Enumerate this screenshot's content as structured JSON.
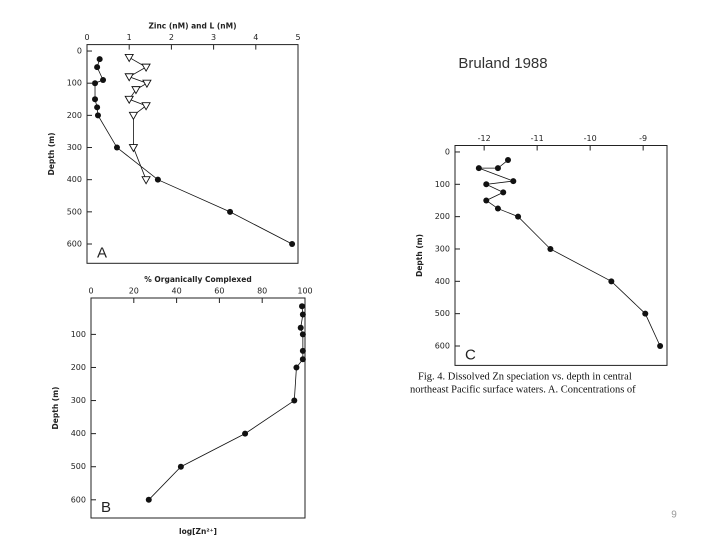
{
  "slide": {
    "title": "Bruland 1988",
    "caption": [
      "Fig. 4.   Dissolved Zn speciation vs. depth in central",
      "northeast Pacific surface waters. A. Concentrations of"
    ],
    "page_number": "9"
  },
  "chart_data": [
    {
      "type": "line",
      "xlabel": "Zinc (nM) and L (nM)",
      "ylabel": "Depth (m)",
      "annotation": "A",
      "xlim": [
        0,
        5
      ],
      "xticks": [
        0,
        1,
        2,
        3,
        4,
        5
      ],
      "ylim": [
        -20,
        660
      ],
      "yticks": [
        0,
        100,
        200,
        300,
        400,
        500,
        600
      ],
      "y_inverted": true,
      "series": [
        {
          "marker": "filled-circle",
          "color": "#111111",
          "x": [
            0.3,
            0.24,
            0.38,
            0.19,
            0.19,
            0.24,
            0.26,
            0.71,
            1.68,
            3.39,
            4.86
          ],
          "values": [
            25,
            50,
            90,
            100,
            150,
            175,
            200,
            300,
            400,
            500,
            600
          ]
        },
        {
          "marker": "open-triangle",
          "color": "#111111",
          "x": [
            1.0,
            1.4,
            1.0,
            1.42,
            1.16,
            1.0,
            1.4,
            1.1,
            1.1,
            1.4
          ],
          "values": [
            20,
            50,
            80,
            100,
            120,
            150,
            170,
            200,
            300,
            400
          ]
        }
      ]
    },
    {
      "type": "line",
      "xlabel": "% Organically Complexed",
      "xlabel_bottom": "log[Zn²⁺]",
      "ylabel": "Depth (m)",
      "annotation": "B",
      "xlim": [
        0,
        100
      ],
      "xticks": [
        0,
        20,
        40,
        60,
        80,
        100
      ],
      "ylim": [
        -10,
        655
      ],
      "yticks": [
        100,
        200,
        300,
        400,
        500,
        600
      ],
      "y_inverted": true,
      "series": [
        {
          "marker": "filled-circle",
          "color": "#111111",
          "x": [
            98.6,
            99,
            98,
            99,
            99,
            99,
            96,
            95,
            72,
            42,
            27
          ],
          "values": [
            15,
            40,
            80,
            100,
            150,
            175,
            200,
            300,
            400,
            500,
            600
          ]
        }
      ]
    },
    {
      "type": "line",
      "ylabel": "Depth (m)",
      "annotation": "C",
      "xlim": [
        -12.55,
        -8.55
      ],
      "xticks": [
        -12,
        -11,
        -10,
        -9
      ],
      "ylim": [
        -20,
        660
      ],
      "yticks": [
        0,
        100,
        200,
        300,
        400,
        500,
        600
      ],
      "y_inverted": true,
      "series": [
        {
          "marker": "filled-circle",
          "color": "#111111",
          "x": [
            -11.55,
            -11.74,
            -12.1,
            -11.45,
            -11.96,
            -11.64,
            -11.96,
            -11.74,
            -11.36,
            -10.75,
            -9.6,
            -8.96,
            -8.68
          ],
          "values": [
            25,
            50,
            50,
            90,
            100,
            125,
            150,
            175,
            200,
            300,
            400,
            500,
            600
          ]
        }
      ]
    }
  ]
}
